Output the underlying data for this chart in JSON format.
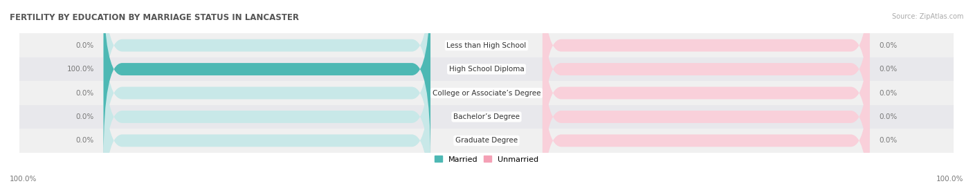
{
  "title": "FERTILITY BY EDUCATION BY MARRIAGE STATUS IN LANCASTER",
  "source": "Source: ZipAtlas.com",
  "categories": [
    "Less than High School",
    "High School Diploma",
    "College or Associate’s Degree",
    "Bachelor’s Degree",
    "Graduate Degree"
  ],
  "married_values": [
    0.0,
    100.0,
    0.0,
    0.0,
    0.0
  ],
  "unmarried_values": [
    0.0,
    0.0,
    0.0,
    0.0,
    0.0
  ],
  "married_color": "#4db8b4",
  "unmarried_color": "#f4a0b5",
  "married_bg_color": "#c8e8e8",
  "unmarried_bg_color": "#f9d0da",
  "row_bg_colors": [
    "#f0f0f0",
    "#e8e8ec"
  ],
  "title_color": "#555555",
  "source_color": "#aaaaaa",
  "value_color": "#777777",
  "category_label_color": "#333333",
  "legend_married": "Married",
  "legend_unmarried": "Unmarried",
  "axis_label": "100.0%",
  "figsize": [
    14.06,
    2.69
  ],
  "dpi": 100
}
